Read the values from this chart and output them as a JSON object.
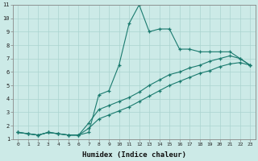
{
  "title": "",
  "xlabel": "Humidex (Indice chaleur)",
  "ylabel": "",
  "bg_color": "#cceae7",
  "grid_color": "#aad4d0",
  "line_color": "#1a7a6e",
  "xlim": [
    -0.5,
    23.5
  ],
  "ylim": [
    1,
    11
  ],
  "xticks": [
    0,
    1,
    2,
    3,
    4,
    5,
    6,
    7,
    8,
    9,
    10,
    11,
    12,
    13,
    14,
    15,
    16,
    17,
    18,
    19,
    20,
    21,
    22,
    23
  ],
  "yticks": [
    1,
    2,
    3,
    4,
    5,
    6,
    7,
    8,
    9,
    10,
    11
  ],
  "line1_x": [
    0,
    1,
    2,
    3,
    4,
    5,
    6,
    7,
    8,
    9,
    10,
    11,
    12,
    13,
    14,
    15,
    16,
    17,
    18,
    19,
    20,
    21,
    22,
    23
  ],
  "line1_y": [
    1.5,
    1.4,
    1.3,
    1.5,
    1.4,
    1.3,
    1.3,
    1.5,
    4.3,
    4.6,
    6.5,
    9.6,
    11.0,
    9.0,
    9.2,
    9.2,
    7.7,
    7.7,
    7.5,
    7.5,
    7.5,
    7.5,
    7.0,
    6.5
  ],
  "line2_x": [
    0,
    1,
    2,
    3,
    4,
    5,
    6,
    7,
    8,
    9,
    10,
    11,
    12,
    13,
    14,
    15,
    16,
    17,
    18,
    19,
    20,
    21,
    22,
    23
  ],
  "line2_y": [
    1.5,
    1.4,
    1.3,
    1.5,
    1.4,
    1.3,
    1.3,
    2.2,
    3.2,
    3.5,
    3.8,
    4.1,
    4.5,
    5.0,
    5.4,
    5.8,
    6.0,
    6.3,
    6.5,
    6.8,
    7.0,
    7.2,
    7.0,
    6.5
  ],
  "line3_x": [
    0,
    1,
    2,
    3,
    4,
    5,
    6,
    7,
    8,
    9,
    10,
    11,
    12,
    13,
    14,
    15,
    16,
    17,
    18,
    19,
    20,
    21,
    22,
    23
  ],
  "line3_y": [
    1.5,
    1.4,
    1.3,
    1.5,
    1.4,
    1.3,
    1.3,
    1.8,
    2.5,
    2.8,
    3.1,
    3.4,
    3.8,
    4.2,
    4.6,
    5.0,
    5.3,
    5.6,
    5.9,
    6.1,
    6.4,
    6.6,
    6.7,
    6.5
  ]
}
